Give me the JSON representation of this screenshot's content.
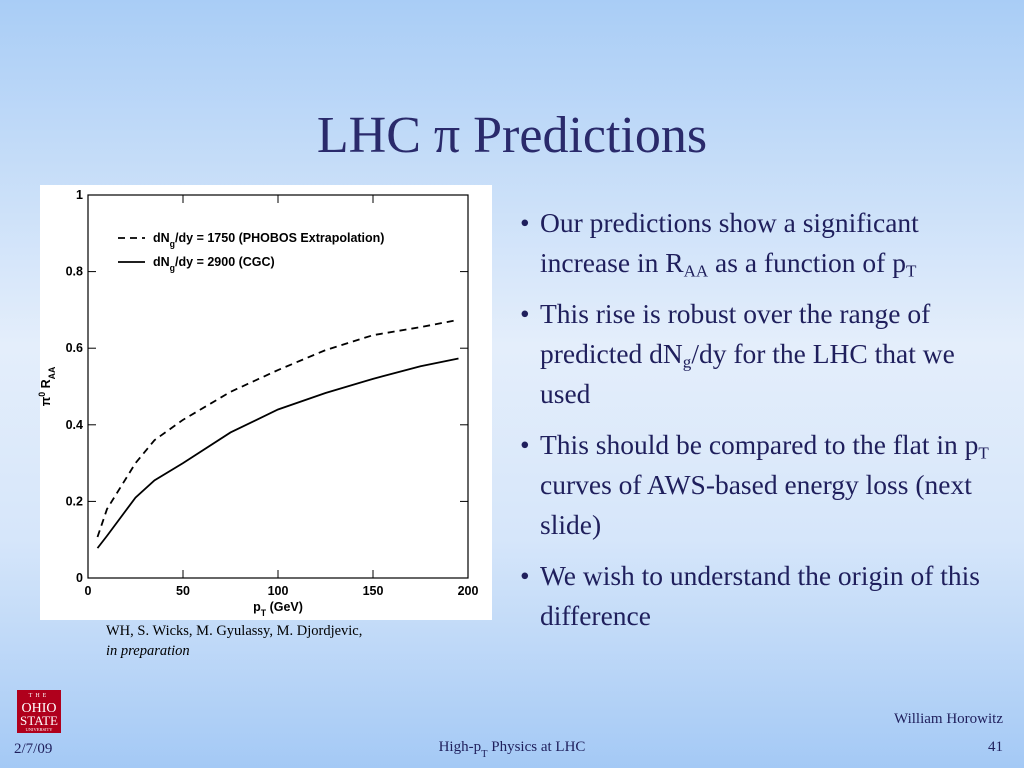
{
  "title": "LHC π Predictions",
  "bullets": [
    [
      {
        "text": "Our predictions show a significant increase in R"
      },
      {
        "text": "AA",
        "sub": true
      },
      {
        "text": " as a function of p"
      },
      {
        "text": "T",
        "sub": true
      }
    ],
    [
      {
        "text": "This rise is robust over the range of predicted dN"
      },
      {
        "text": "g",
        "sub": true
      },
      {
        "text": "/dy for the LHC that we used"
      }
    ],
    [
      {
        "text": "This should be compared to the flat in p"
      },
      {
        "text": "T",
        "sub": true
      },
      {
        "text": " curves of AWS-based energy loss (next slide)"
      }
    ],
    [
      {
        "text": "We wish to understand the origin of this difference"
      }
    ]
  ],
  "citation": {
    "authors": "WH, S. Wicks, M. Gyulassy, M. Djordjevic,",
    "status": "in preparation"
  },
  "logo": [
    "THE",
    "OHIO",
    "STATE",
    "UNIVERSITY"
  ],
  "footer": {
    "date": "2/7/09",
    "talk": [
      {
        "text": "High-p"
      },
      {
        "text": "T",
        "sub": true
      },
      {
        "text": " Physics at LHC"
      }
    ],
    "author": "William Horowitz",
    "page": "41"
  },
  "chart_data": {
    "type": "line",
    "xlabel": [
      {
        "text": "p"
      },
      {
        "text": "T",
        "sub": true
      },
      {
        "text": " (GeV)"
      }
    ],
    "ylabel": [
      {
        "text": "π"
      },
      {
        "text": "0",
        "sup": true
      },
      {
        "text": " R"
      },
      {
        "text": "AA",
        "sub": true
      }
    ],
    "x": [
      5,
      10,
      25,
      35,
      50,
      75,
      100,
      125,
      150,
      175,
      195
    ],
    "series": [
      {
        "name": [
          {
            "text": "dN"
          },
          {
            "text": "g",
            "sub": true
          },
          {
            "text": "/dy = 1750 (PHOBOS Extrapolation)"
          }
        ],
        "color": "#000000",
        "line_style": "dashed",
        "values": [
          0.107,
          0.18,
          0.3,
          0.36,
          0.413,
          0.486,
          0.543,
          0.595,
          0.634,
          0.655,
          0.674
        ]
      },
      {
        "name": [
          {
            "text": "dN"
          },
          {
            "text": "g",
            "sub": true
          },
          {
            "text": "/dy = 2900 (CGC)"
          }
        ],
        "color": "#000000",
        "line_style": "solid",
        "values": [
          0.078,
          0.11,
          0.21,
          0.255,
          0.3,
          0.38,
          0.44,
          0.483,
          0.52,
          0.553,
          0.573
        ]
      }
    ],
    "xlim": [
      0,
      200
    ],
    "ylim": [
      0,
      1
    ],
    "xticks": [
      0,
      50,
      100,
      150,
      200
    ],
    "yticks": [
      0,
      0.2,
      0.4,
      0.6,
      0.8,
      1
    ],
    "legend": "upper left"
  }
}
